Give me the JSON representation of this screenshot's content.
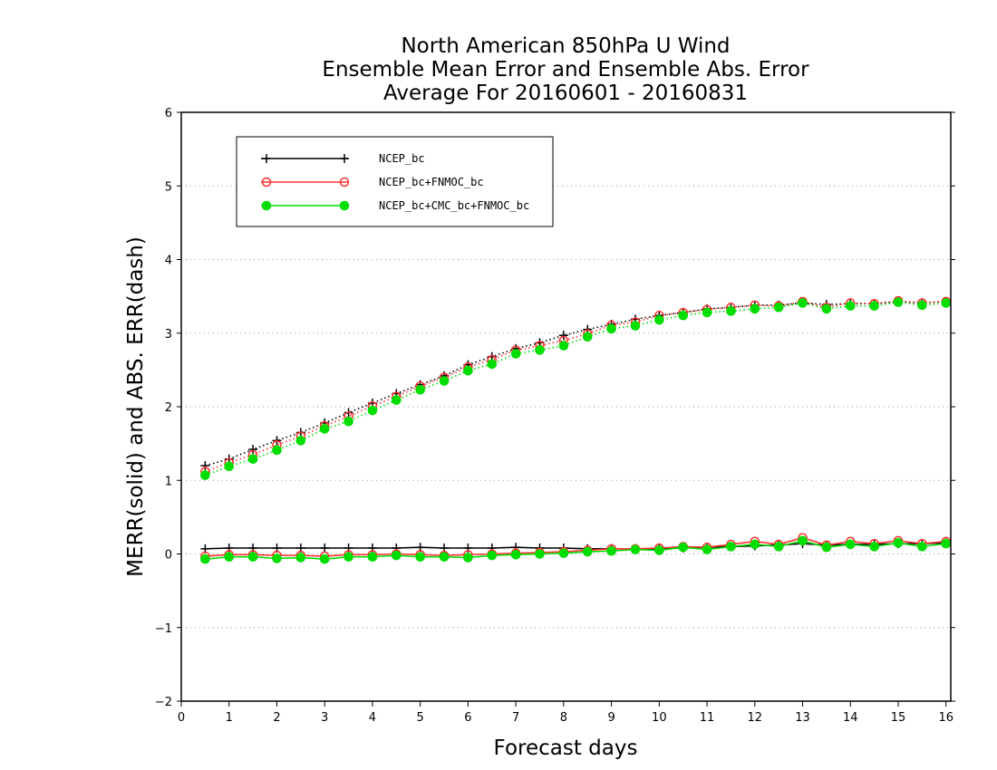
{
  "chart_data": {
    "type": "line",
    "title": [
      "North American 850hPa U Wind",
      "Ensemble Mean Error and Ensemble Abs. Error",
      "Average For 20160601 - 20160831"
    ],
    "xlabel": "Forecast days",
    "ylabel": "MERR(solid) and ABS. ERR(dash)",
    "xlim": [
      0,
      16.1
    ],
    "ylim": [
      -2,
      6
    ],
    "x_ticks": [
      0,
      1,
      2,
      3,
      4,
      5,
      6,
      7,
      8,
      9,
      10,
      11,
      12,
      13,
      14,
      15,
      16
    ],
    "y_ticks": [
      -2,
      -1,
      0,
      1,
      2,
      3,
      4,
      5,
      6
    ],
    "y_tick_labels": [
      "−2",
      "−1",
      "0",
      "1",
      "2",
      "3",
      "4",
      "5",
      "6"
    ],
    "grid": "dotted horizontal",
    "legend_position": "top-left",
    "x": [
      0.5,
      1.0,
      1.5,
      2.0,
      2.5,
      3.0,
      3.5,
      4.0,
      4.5,
      5.0,
      5.5,
      6.0,
      6.5,
      7.0,
      7.5,
      8.0,
      8.5,
      9.0,
      9.5,
      10.0,
      10.5,
      11.0,
      11.5,
      12.0,
      12.5,
      13.0,
      13.5,
      14.0,
      14.5,
      15.0,
      15.5,
      16.0
    ],
    "series": [
      {
        "name": "NCEP_bc",
        "color": "#000000",
        "marker": "plus",
        "merr": [
          0.07,
          0.08,
          0.08,
          0.08,
          0.08,
          0.08,
          0.08,
          0.08,
          0.08,
          0.09,
          0.08,
          0.08,
          0.08,
          0.09,
          0.08,
          0.08,
          0.07,
          0.07,
          0.07,
          0.07,
          0.08,
          0.09,
          0.1,
          0.11,
          0.12,
          0.14,
          0.12,
          0.13,
          0.13,
          0.14,
          0.14,
          0.15
        ],
        "abs_err": [
          1.2,
          1.29,
          1.42,
          1.54,
          1.65,
          1.78,
          1.92,
          2.05,
          2.18,
          2.3,
          2.42,
          2.57,
          2.68,
          2.79,
          2.87,
          2.97,
          3.05,
          3.12,
          3.19,
          3.24,
          3.28,
          3.33,
          3.35,
          3.38,
          3.38,
          3.41,
          3.39,
          3.4,
          3.4,
          3.43,
          3.41,
          3.43
        ]
      },
      {
        "name": "NCEP_bc+FNMOC_bc",
        "color": "#ff3030",
        "marker": "open-circle",
        "merr": [
          -0.03,
          -0.01,
          -0.01,
          -0.02,
          -0.02,
          -0.03,
          -0.01,
          -0.01,
          0.0,
          -0.01,
          -0.02,
          -0.01,
          0.0,
          0.01,
          0.02,
          0.03,
          0.05,
          0.07,
          0.07,
          0.08,
          0.1,
          0.09,
          0.13,
          0.17,
          0.13,
          0.22,
          0.12,
          0.17,
          0.14,
          0.18,
          0.14,
          0.17
        ],
        "abs_err": [
          1.12,
          1.24,
          1.35,
          1.48,
          1.6,
          1.74,
          1.87,
          2.01,
          2.14,
          2.28,
          2.4,
          2.54,
          2.64,
          2.77,
          2.83,
          2.9,
          2.99,
          3.11,
          3.15,
          3.24,
          3.28,
          3.32,
          3.35,
          3.38,
          3.37,
          3.43,
          3.35,
          3.41,
          3.4,
          3.44,
          3.41,
          3.43
        ]
      },
      {
        "name": "NCEP_bc+CMC_bc+FNMOC_bc",
        "color": "#00dd00",
        "marker": "filled-circle",
        "merr": [
          -0.07,
          -0.04,
          -0.04,
          -0.06,
          -0.05,
          -0.07,
          -0.04,
          -0.04,
          -0.02,
          -0.04,
          -0.04,
          -0.05,
          -0.02,
          -0.01,
          0.0,
          0.01,
          0.03,
          0.04,
          0.06,
          0.05,
          0.09,
          0.06,
          0.1,
          0.13,
          0.1,
          0.18,
          0.09,
          0.13,
          0.1,
          0.15,
          0.1,
          0.14
        ],
        "abs_err": [
          1.07,
          1.19,
          1.29,
          1.41,
          1.54,
          1.7,
          1.8,
          1.95,
          2.09,
          2.23,
          2.35,
          2.49,
          2.58,
          2.72,
          2.77,
          2.83,
          2.95,
          3.06,
          3.1,
          3.18,
          3.24,
          3.28,
          3.3,
          3.33,
          3.35,
          3.41,
          3.33,
          3.37,
          3.37,
          3.42,
          3.38,
          3.41
        ]
      }
    ]
  }
}
